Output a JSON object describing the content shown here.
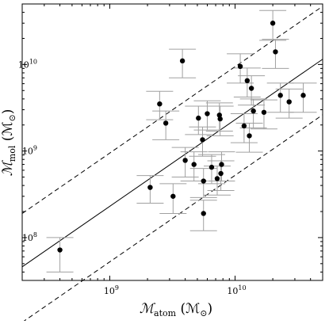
{
  "chart_data": {
    "type": "scatter",
    "title": "",
    "xlabel": "ℳ_atom (ℳ_⊙)",
    "ylabel": "ℳ_mol (ℳ_⊙)",
    "xlabel_parts": {
      "symbol": "ℳ",
      "sub": "atom",
      "unit_open": " (ℳ",
      "unit_sub": "⊙",
      "unit_close": ")"
    },
    "ylabel_parts": {
      "symbol": "ℳ",
      "sub": "mol",
      "unit_open": " (ℳ",
      "unit_sub": "⊙",
      "unit_close": ")"
    },
    "xscale": "log",
    "yscale": "log",
    "xlim": [
      200000000,
      50000000000
    ],
    "ylim": [
      32000000,
      50000000000
    ],
    "x_ticks": [
      {
        "value": 1000000000,
        "base": "10",
        "exp": "9"
      },
      {
        "value": 10000000000,
        "base": "10",
        "exp": "10"
      }
    ],
    "y_ticks": [
      {
        "value": 100000000,
        "base": "10",
        "exp": "8"
      },
      {
        "value": 1000000000,
        "base": "10",
        "exp": "9"
      },
      {
        "value": 10000000000,
        "base": "10",
        "exp": "10"
      }
    ],
    "grid": false,
    "marker_color": "#000000",
    "errorbar_color": "#a0a0a0",
    "points": [
      {
        "x": 400000000,
        "y": 72000000,
        "ylo": 40000000,
        "yhi": 100000000
      },
      {
        "x": 2100000000,
        "y": 380000000,
        "ylo": 250000000,
        "yhi": 520000000
      },
      {
        "x": 2500000000,
        "y": 3500000000,
        "ylo": 2300000000,
        "yhi": 4900000000
      },
      {
        "x": 2800000000,
        "y": 2100000000,
        "ylo": 1350000000,
        "yhi": 2900000000
      },
      {
        "x": 3200000000,
        "y": 300000000,
        "ylo": 190000000,
        "yhi": 420000000
      },
      {
        "x": 3800000000,
        "y": 11000000000,
        "ylo": 7000000000,
        "yhi": 15000000000
      },
      {
        "x": 4000000000,
        "y": 780000000,
        "ylo": 500000000,
        "yhi": 1100000000
      },
      {
        "x": 4700000000,
        "y": 700000000,
        "ylo": 450000000,
        "yhi": 980000000
      },
      {
        "x": 5100000000,
        "y": 2400000000,
        "ylo": 1550000000,
        "yhi": 3300000000
      },
      {
        "x": 5500000000,
        "y": 1350000000,
        "ylo": 870000000,
        "yhi": 1900000000
      },
      {
        "x": 5600000000,
        "y": 450000000,
        "ylo": 290000000,
        "yhi": 630000000
      },
      {
        "x": 5600000000,
        "y": 190000000,
        "ylo": 120000000,
        "yhi": 270000000
      },
      {
        "x": 6000000000,
        "y": 2700000000,
        "ylo": 1750000000,
        "yhi": 3800000000
      },
      {
        "x": 6500000000,
        "y": 650000000,
        "ylo": 420000000,
        "yhi": 910000000
      },
      {
        "x": 7200000000,
        "y": 480000000,
        "ylo": 310000000,
        "yhi": 670000000
      },
      {
        "x": 7500000000,
        "y": 2600000000,
        "ylo": 1700000000,
        "yhi": 3600000000
      },
      {
        "x": 7600000000,
        "y": 2350000000,
        "ylo": 1500000000,
        "yhi": 3300000000
      },
      {
        "x": 7700000000,
        "y": 550000000,
        "ylo": 350000000,
        "yhi": 770000000
      },
      {
        "x": 7800000000,
        "y": 700000000,
        "ylo": 450000000,
        "yhi": 980000000
      },
      {
        "x": 11000000000,
        "y": 9500000000,
        "ylo": 6100000000,
        "yhi": 13300000000
      },
      {
        "x": 11800000000,
        "y": 1950000000,
        "ylo": 1250000000,
        "yhi": 2700000000
      },
      {
        "x": 12500000000,
        "y": 6500000000,
        "ylo": 4200000000,
        "yhi": 9100000000
      },
      {
        "x": 13000000000,
        "y": 1500000000,
        "ylo": 970000000,
        "yhi": 2100000000
      },
      {
        "x": 13500000000,
        "y": 5300000000,
        "ylo": 3400000000,
        "yhi": 7400000000
      },
      {
        "x": 14000000000,
        "y": 2900000000,
        "ylo": 1850000000,
        "yhi": 4000000000
      },
      {
        "x": 17000000000,
        "y": 2800000000,
        "ylo": 1800000000,
        "yhi": 3900000000
      },
      {
        "x": 20000000000,
        "y": 30000000000,
        "ylo": 19000000000,
        "yhi": 42000000000
      },
      {
        "x": 21000000000,
        "y": 14000000000,
        "ylo": 9000000000,
        "yhi": 19500000000
      },
      {
        "x": 23000000000,
        "y": 4400000000,
        "ylo": 2800000000,
        "yhi": 6100000000
      },
      {
        "x": 27000000000,
        "y": 3700000000,
        "ylo": 2400000000,
        "yhi": 5200000000
      },
      {
        "x": 35000000000,
        "y": 4400000000,
        "ylo": 2800000000,
        "yhi": 6100000000
      }
    ],
    "fit_line": {
      "style": "solid",
      "x": [
        200000000,
        50000000000
      ],
      "y": [
        46000000,
        11500000000
      ]
    },
    "envelope_lines": [
      {
        "style": "dashed",
        "x": [
          200000000,
          50000000000
        ],
        "y": [
          190000000,
          47000000000
        ]
      },
      {
        "style": "dashed",
        "x": [
          200000000,
          50000000000
        ],
        "y": [
          10500000,
          2620000000
        ]
      }
    ]
  }
}
